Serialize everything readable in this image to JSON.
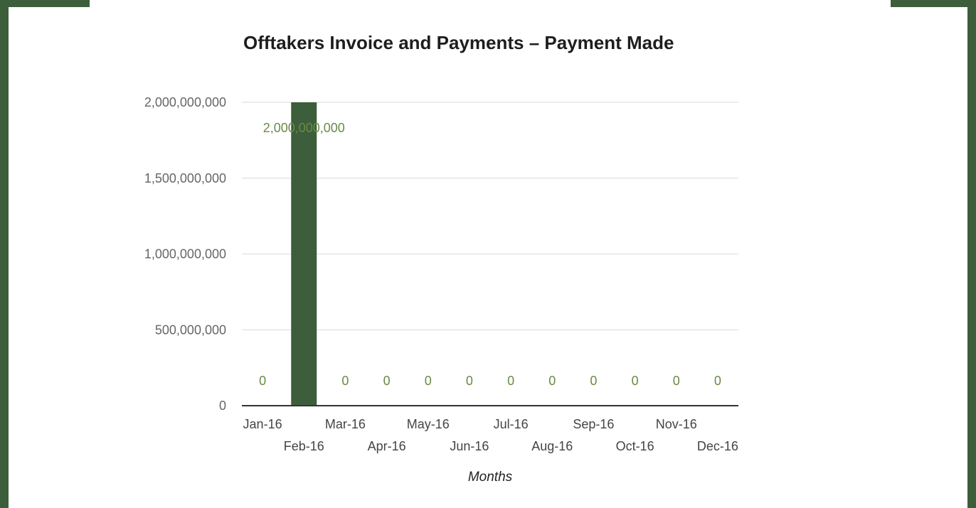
{
  "chart_data": {
    "type": "bar",
    "title": "Offtakers Invoice and Payments – Payment Made",
    "xlabel": "Months",
    "ylabel": "",
    "categories": [
      "Jan-16",
      "Feb-16",
      "Mar-16",
      "Apr-16",
      "May-16",
      "Jun-16",
      "Jul-16",
      "Aug-16",
      "Sep-16",
      "Oct-16",
      "Nov-16",
      "Dec-16"
    ],
    "values": [
      0,
      2000000000,
      0,
      0,
      0,
      0,
      0,
      0,
      0,
      0,
      0,
      0
    ],
    "data_labels": [
      "0",
      "2,000,000,000",
      "0",
      "0",
      "0",
      "0",
      "0",
      "0",
      "0",
      "0",
      "0",
      "0"
    ],
    "ylim": [
      0,
      2000000000
    ],
    "yticks": [
      0,
      500000000,
      1000000000,
      1500000000,
      2000000000
    ],
    "ytick_labels": [
      "0",
      "500,000,000",
      "1,000,000,000",
      "1,500,000,000",
      "2,000,000,000"
    ],
    "grid": true,
    "legend": "none",
    "colors": {
      "bar": "#3c5e3b",
      "data_label": "#6a8a45",
      "grid": "#e6e6e6",
      "baseline": "#333333",
      "frame": "#3c5e3b"
    }
  }
}
